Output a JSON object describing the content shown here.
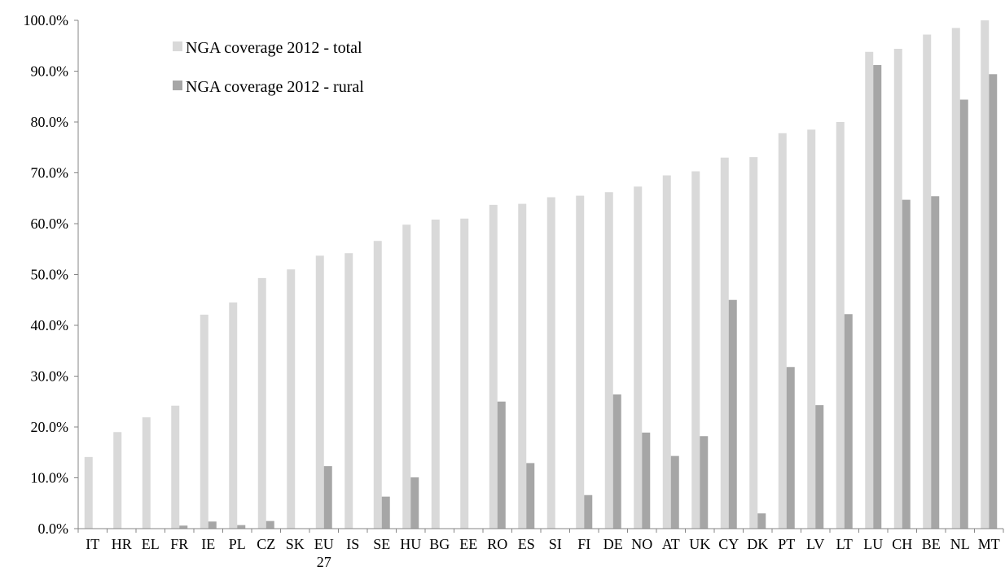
{
  "chart_data": {
    "type": "bar",
    "title": "",
    "xlabel": "",
    "ylabel": "",
    "ylim": [
      0,
      100
    ],
    "yticks": [
      "0.0%",
      "10.0%",
      "20.0%",
      "30.0%",
      "40.0%",
      "50.0%",
      "60.0%",
      "70.0%",
      "80.0%",
      "90.0%",
      "100.0%"
    ],
    "grid": false,
    "legend_position": "top-left",
    "categories": [
      "IT",
      "HR",
      "EL",
      "FR",
      "IE",
      "PL",
      "CZ",
      "SK",
      "EU 27",
      "IS",
      "SE",
      "HU",
      "BG",
      "EE",
      "RO",
      "ES",
      "SI",
      "FI",
      "DE",
      "NO",
      "AT",
      "UK",
      "CY",
      "DK",
      "PT",
      "LV",
      "LT",
      "LU",
      "CH",
      "BE",
      "NL",
      "MT"
    ],
    "series": [
      {
        "name": "NGA coverage 2012 - total",
        "color": "#d9d9d9",
        "values": [
          14.1,
          19.0,
          21.9,
          24.2,
          42.1,
          44.5,
          49.3,
          51.0,
          53.7,
          54.2,
          56.6,
          59.8,
          60.8,
          61.0,
          63.7,
          63.9,
          65.2,
          65.5,
          66.2,
          67.3,
          69.5,
          70.3,
          73.0,
          73.1,
          77.8,
          78.5,
          80.0,
          93.8,
          94.4,
          97.2,
          98.5,
          100.0
        ]
      },
      {
        "name": "NGA coverage 2012 - rural",
        "color": "#a6a6a6",
        "values": [
          0,
          0,
          0,
          0.6,
          1.4,
          0.7,
          1.5,
          0,
          12.3,
          0,
          6.3,
          10.1,
          0,
          0,
          25.0,
          12.9,
          0,
          6.6,
          26.4,
          18.9,
          14.3,
          18.2,
          45.0,
          3.0,
          31.8,
          24.3,
          42.2,
          91.2,
          64.7,
          65.4,
          84.4,
          89.4
        ]
      }
    ]
  }
}
